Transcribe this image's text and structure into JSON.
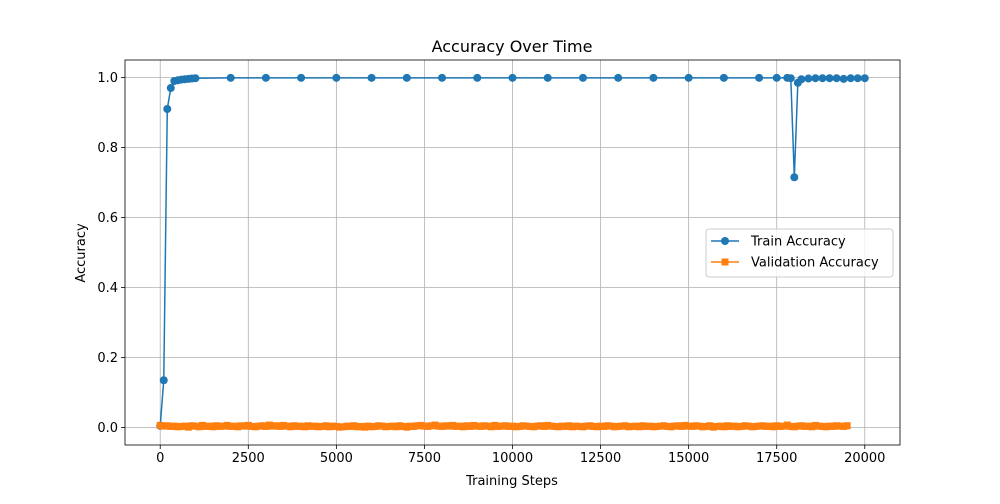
{
  "chart_data": {
    "type": "line",
    "title": "Accuracy Over Time",
    "xlabel": "Training Steps",
    "ylabel": "Accuracy",
    "xlim": [
      -1000,
      21000
    ],
    "ylim": [
      -0.05,
      1.05
    ],
    "grid": true,
    "legend_position": "center-right",
    "x_ticks": [
      0,
      2500,
      5000,
      7500,
      10000,
      12500,
      15000,
      17500,
      20000
    ],
    "x_tick_labels": [
      "0",
      "2500",
      "5000",
      "7500",
      "10000",
      "12500",
      "15000",
      "17500",
      "20000"
    ],
    "y_ticks": [
      0.0,
      0.2,
      0.4,
      0.6,
      0.8,
      1.0
    ],
    "y_tick_labels": [
      "0.0",
      "0.2",
      "0.4",
      "0.6",
      "0.8",
      "1.0"
    ],
    "series": [
      {
        "name": "Train Accuracy",
        "color": "#1f77b4",
        "marker": "circle",
        "x": [
          0,
          100,
          200,
          300,
          400,
          500,
          600,
          700,
          800,
          900,
          1000,
          2000,
          3000,
          4000,
          5000,
          6000,
          7000,
          8000,
          9000,
          10000,
          11000,
          12000,
          13000,
          14000,
          15000,
          16000,
          17000,
          17500,
          17800,
          17900,
          18000,
          18100,
          18200,
          18400,
          18600,
          18800,
          19000,
          19200,
          19400,
          19600,
          19800,
          20000
        ],
        "values": [
          0.005,
          0.135,
          0.91,
          0.97,
          0.99,
          0.992,
          0.994,
          0.995,
          0.996,
          0.997,
          0.998,
          0.999,
          0.999,
          0.999,
          0.999,
          0.999,
          0.999,
          0.999,
          0.999,
          0.999,
          0.999,
          0.999,
          0.999,
          0.999,
          0.999,
          0.999,
          0.999,
          0.999,
          0.999,
          0.998,
          0.715,
          0.985,
          0.995,
          0.997,
          0.998,
          0.998,
          0.998,
          0.998,
          0.996,
          0.998,
          0.998,
          0.998
        ]
      },
      {
        "name": "Validation Accuracy",
        "color": "#ff7f0e",
        "marker": "square",
        "x_start": 0,
        "x_step": 100,
        "values": [
          0.006,
          0.004,
          0.005,
          0.003,
          0.004,
          0.002,
          0.003,
          0.004,
          0.001,
          0.005,
          0.004,
          0.002,
          0.006,
          0.003,
          0.004,
          0.002,
          0.005,
          0.003,
          0.004,
          0.006,
          0.003,
          0.004,
          0.002,
          0.005,
          0.004,
          0.006,
          0.003,
          0.002,
          0.004,
          0.005,
          0.003,
          0.007,
          0.004,
          0.005,
          0.003,
          0.006,
          0.004,
          0.002,
          0.005,
          0.003,
          0.004,
          0.002,
          0.005,
          0.003,
          0.004,
          0.002,
          0.003,
          0.005,
          0.002,
          0.004,
          0.003,
          0.001,
          0.002,
          0.004,
          0.003,
          0.005,
          0.002,
          0.003,
          0.001,
          0.004,
          0.002,
          0.003,
          0.005,
          0.004,
          0.002,
          0.003,
          0.004,
          0.002,
          0.005,
          0.003,
          0.001,
          0.004,
          0.003,
          0.005,
          0.006,
          0.004,
          0.003,
          0.005,
          0.007,
          0.004,
          0.003,
          0.005,
          0.004,
          0.006,
          0.003,
          0.004,
          0.002,
          0.005,
          0.003,
          0.006,
          0.004,
          0.003,
          0.005,
          0.004,
          0.002,
          0.006,
          0.003,
          0.004,
          0.005,
          0.003,
          0.004,
          0.002,
          0.003,
          0.005,
          0.004,
          0.003,
          0.002,
          0.004,
          0.005,
          0.003,
          0.006,
          0.004,
          0.003,
          0.002,
          0.004,
          0.003,
          0.005,
          0.002,
          0.004,
          0.003,
          0.002,
          0.004,
          0.005,
          0.003,
          0.002,
          0.004,
          0.003,
          0.005,
          0.004,
          0.002,
          0.003,
          0.004,
          0.005,
          0.002,
          0.003,
          0.004,
          0.002,
          0.005,
          0.003,
          0.004,
          0.002,
          0.003,
          0.004,
          0.005,
          0.003,
          0.002,
          0.004,
          0.005,
          0.003,
          0.006,
          0.004,
          0.003,
          0.005,
          0.004,
          0.002,
          0.003,
          0.005,
          0.001,
          0.003,
          0.004,
          0.002,
          0.005,
          0.003,
          0.004,
          0.002,
          0.003,
          0.005,
          0.004,
          0.002,
          0.003,
          0.004,
          0.005,
          0.003,
          0.004,
          0.002,
          0.005,
          0.003,
          0.004,
          0.007,
          0.003,
          0.002,
          0.004,
          0.005,
          0.003,
          0.004,
          0.002,
          0.006,
          0.004,
          0.003,
          0.002,
          0.004,
          0.003,
          0.005,
          0.004,
          0.003,
          0.005
        ]
      }
    ]
  }
}
